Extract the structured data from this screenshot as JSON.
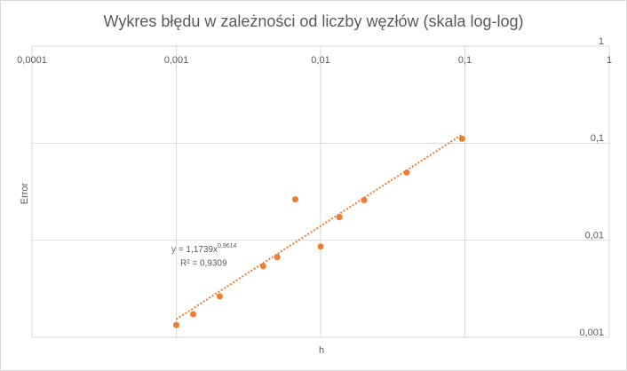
{
  "chart_data": {
    "type": "scatter",
    "title": "Wykres błędu w zależności od liczby węzłów (skala log-log)",
    "x_label": "h",
    "y_label": "Error",
    "log_x": true,
    "log_y": true,
    "grid": true,
    "xlim": [
      0.0001,
      1
    ],
    "ylim": [
      0.001,
      1
    ],
    "xticks": [
      {
        "value": 0.0001,
        "label": "0,0001"
      },
      {
        "value": 0.001,
        "label": "0,001"
      },
      {
        "value": 0.01,
        "label": "0,01"
      },
      {
        "value": 0.1,
        "label": "0,1"
      },
      1
    ],
    "yticks": [
      {
        "value": 0.001,
        "label": "0,001"
      },
      {
        "value": 0.01,
        "label": "0,01"
      },
      {
        "value": 0.1,
        "label": "0,1"
      },
      1
    ],
    "color": "#ed7d31",
    "x": [
      0.001,
      0.00131,
      0.002,
      0.004,
      0.005,
      0.00668,
      0.01,
      0.0135,
      0.02,
      0.0395,
      0.0955
    ],
    "values": [
      0.00134,
      0.00173,
      0.00264,
      0.0054,
      0.0067,
      0.0264,
      0.0086,
      0.0173,
      0.0259,
      0.0498,
      0.111
    ],
    "trendline": {
      "coefficient": 1.1739,
      "exponent": 0.9614,
      "equation": "y = 1,1739x",
      "equation_exponent": "0,9614",
      "r_squared": "R² = 0,9309"
    }
  }
}
